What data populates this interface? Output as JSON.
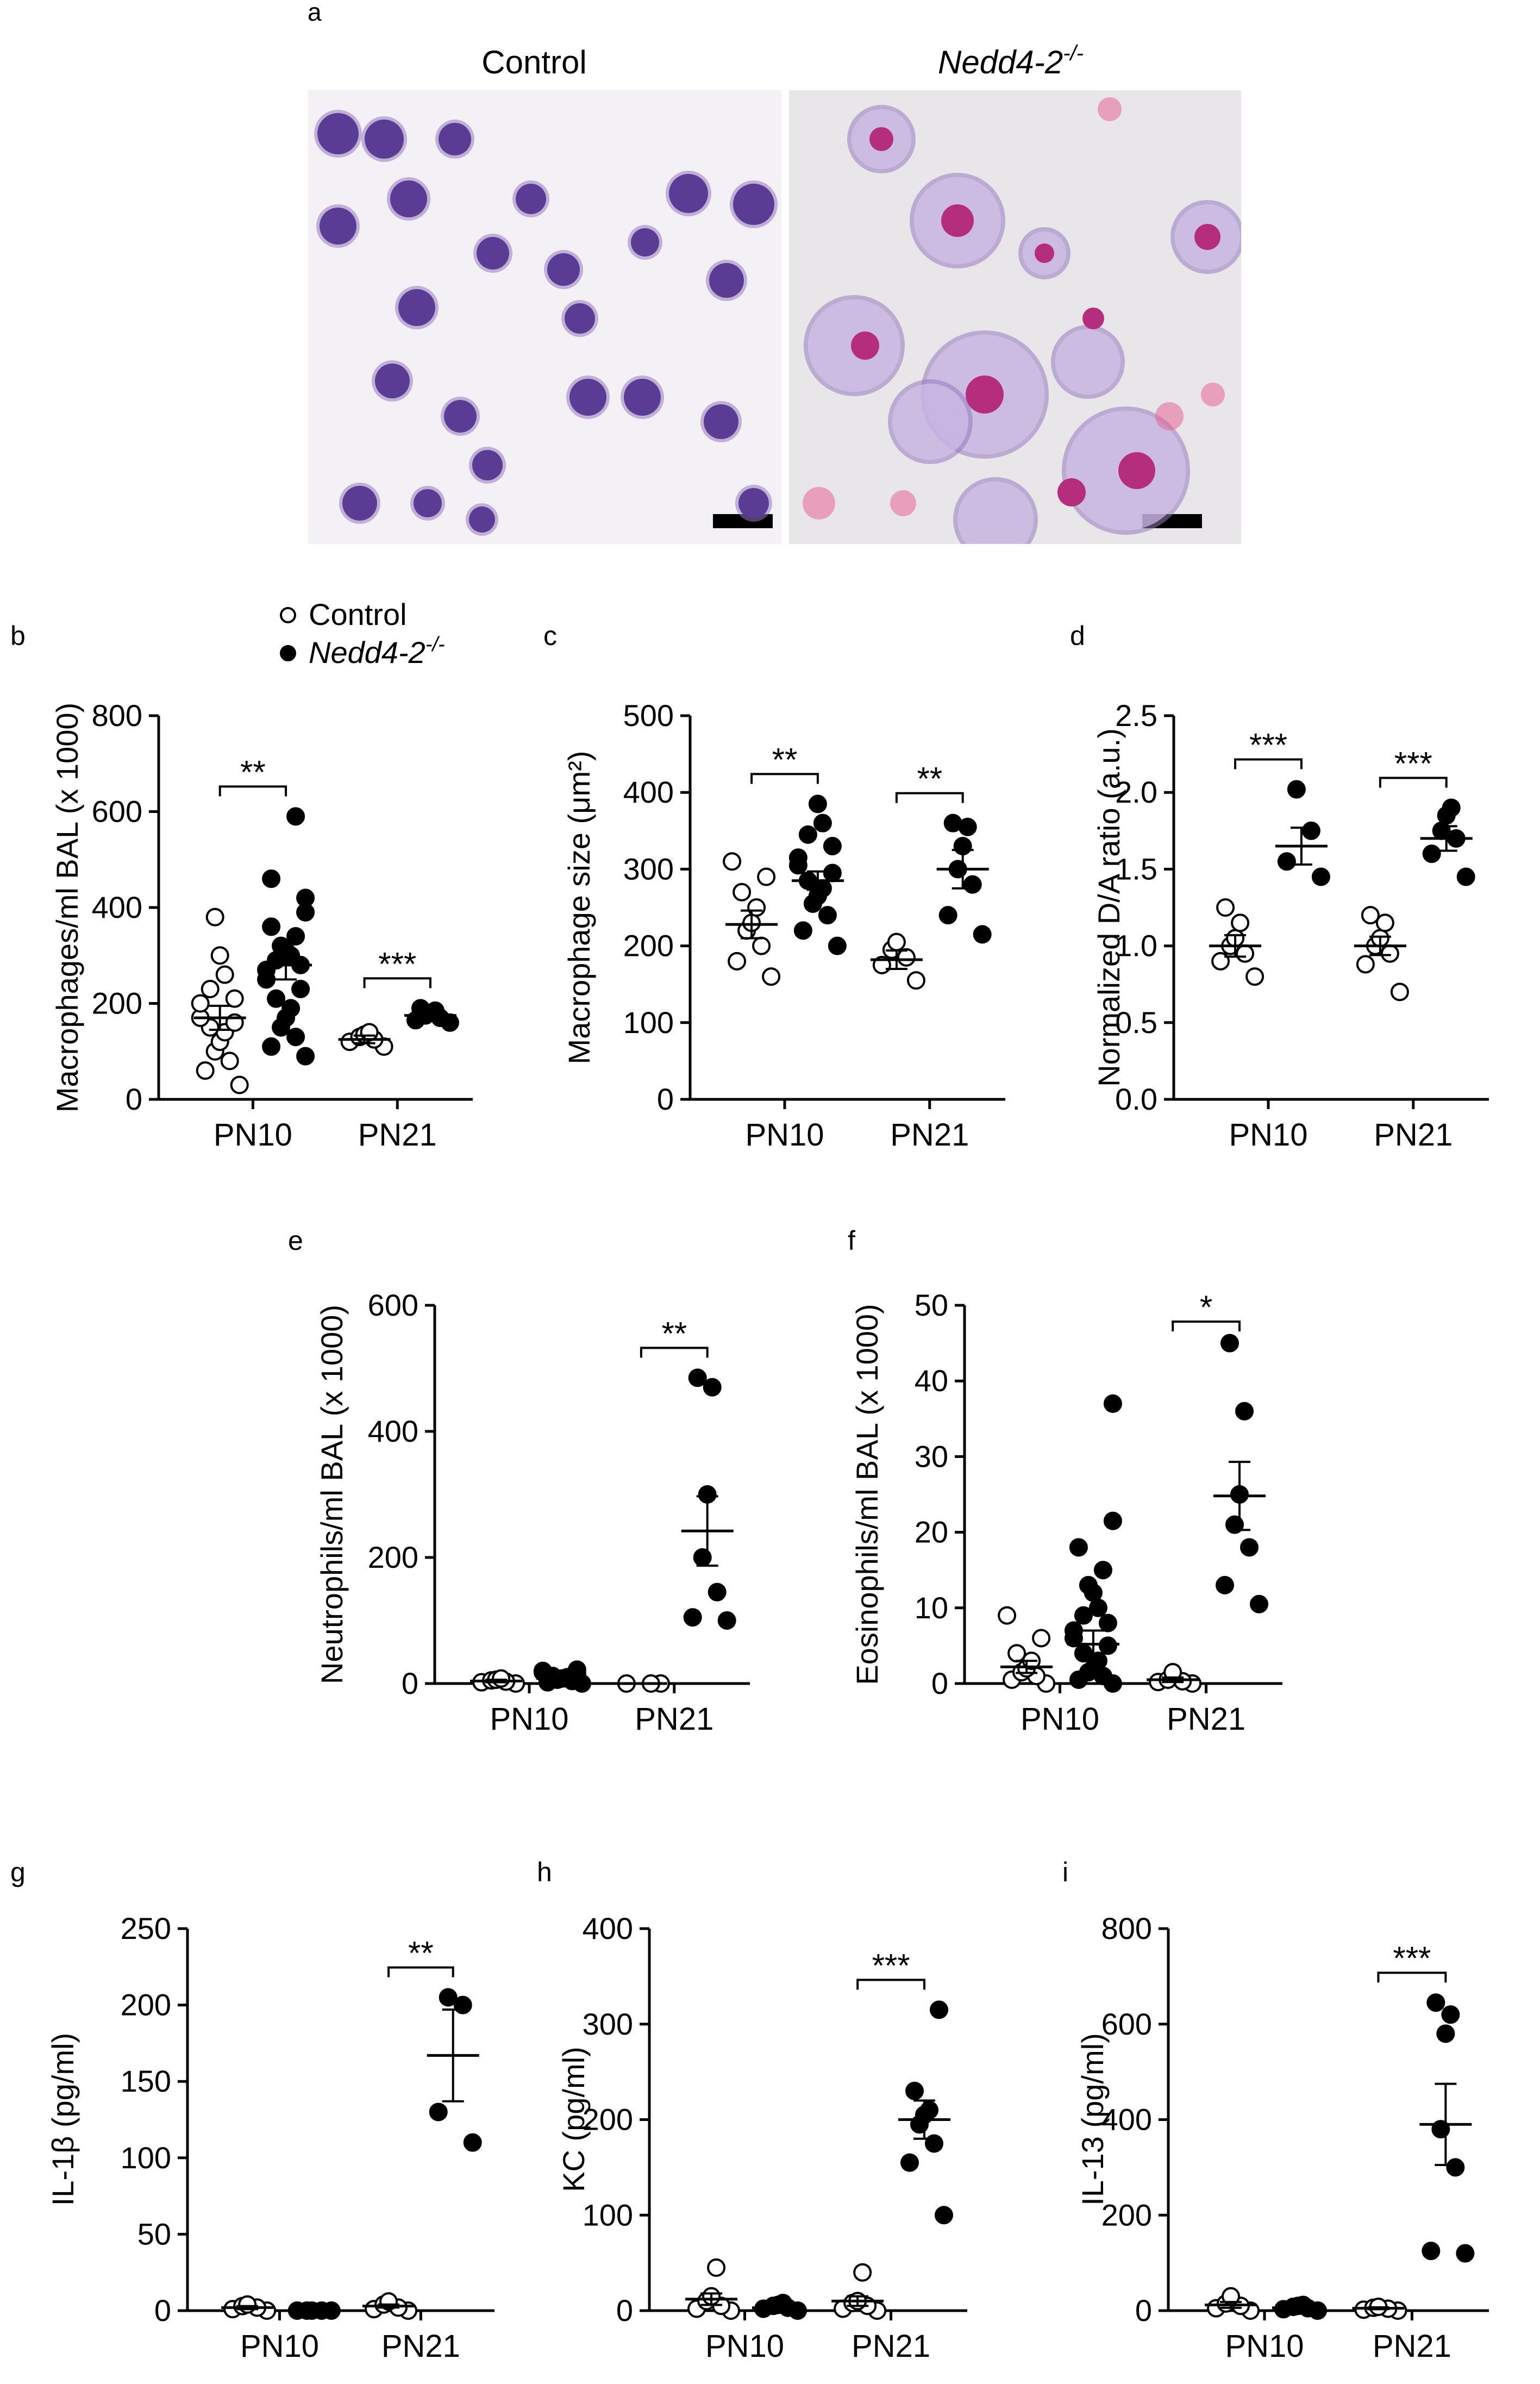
{
  "panel_letters": {
    "a": "a",
    "b": "b",
    "c": "c",
    "d": "d",
    "e": "e",
    "f": "f",
    "g": "g",
    "h": "h",
    "i": "i"
  },
  "micrographs": {
    "control_title": "Control",
    "ko_title_base": "Nedd4-2",
    "ko_title_sup": "-/-"
  },
  "legend": {
    "control": "Control",
    "ko_base": "Nedd4-2",
    "ko_sup": "-/-"
  },
  "colors": {
    "control_fill": "#ffffff",
    "ko_fill": "#000000",
    "axis": "#000000"
  },
  "chart_data": [
    {
      "id": "b",
      "type": "scatter",
      "ylabel": "Macrophages/ml BAL (x 1000)",
      "ylim": [
        0,
        800
      ],
      "yticks": [
        0,
        200,
        400,
        600,
        800
      ],
      "categories": [
        "PN10",
        "PN21"
      ],
      "series": [
        {
          "name": "Control",
          "groups": [
            [
              30,
              60,
              80,
              100,
              120,
              140,
              150,
              160,
              170,
              200,
              210,
              230,
              260,
              300,
              380
            ],
            [
              110,
              120,
              125,
              130,
              135,
              140
            ]
          ]
        },
        {
          "name": "Nedd4-2-/-",
          "groups": [
            [
              90,
              110,
              130,
              150,
              170,
              190,
              210,
              230,
              250,
              270,
              280,
              290,
              300,
              310,
              320,
              340,
              360,
              390,
              420,
              460,
              590
            ],
            [
              160,
              165,
              170,
              175,
              180,
              185,
              190
            ]
          ]
        }
      ],
      "means": [
        [
          170,
          280
        ],
        [
          125,
          175
        ]
      ],
      "sems": [
        [
          25,
          30
        ],
        [
          8,
          6
        ]
      ],
      "significance": [
        "**",
        "***"
      ]
    },
    {
      "id": "c",
      "type": "scatter",
      "ylabel": "Macrophage size (μm²)",
      "ylim": [
        0,
        500
      ],
      "yticks": [
        0,
        100,
        200,
        300,
        400,
        500
      ],
      "categories": [
        "PN10",
        "PN21"
      ],
      "series": [
        {
          "name": "Control",
          "groups": [
            [
              160,
              180,
              200,
              220,
              230,
              250,
              270,
              290,
              310
            ],
            [
              155,
              175,
              185,
              195,
              205
            ]
          ]
        },
        {
          "name": "Nedd4-2-/-",
          "groups": [
            [
              200,
              220,
              240,
              255,
              265,
              275,
              285,
              295,
              305,
              315,
              330,
              345,
              360,
              385
            ],
            [
              215,
              240,
              280,
              300,
              330,
              355,
              360
            ]
          ]
        }
      ],
      "means": [
        [
          228,
          285
        ],
        [
          182,
          300
        ]
      ],
      "sems": [
        [
          18,
          12
        ],
        [
          12,
          25
        ]
      ],
      "significance": [
        "**",
        "**"
      ]
    },
    {
      "id": "d",
      "type": "scatter",
      "ylabel": "Normalized D/A ratio (a.u.)",
      "ylim": [
        0,
        2.5
      ],
      "yticks": [
        "0.0",
        "0.5",
        "1.0",
        "1.5",
        "2.0",
        "2.5"
      ],
      "categories": [
        "PN10",
        "PN21"
      ],
      "series": [
        {
          "name": "Control",
          "groups": [
            [
              0.8,
              0.9,
              0.95,
              1.0,
              1.05,
              1.15,
              1.25
            ],
            [
              0.7,
              0.88,
              0.95,
              1.0,
              1.05,
              1.15,
              1.2
            ]
          ]
        },
        {
          "name": "Nedd4-2-/-",
          "groups": [
            [
              1.45,
              1.55,
              1.75,
              2.02
            ],
            [
              1.45,
              1.6,
              1.7,
              1.75,
              1.85,
              1.9
            ]
          ]
        }
      ],
      "means": [
        [
          1.0,
          1.65
        ],
        [
          1.0,
          1.7
        ]
      ],
      "sems": [
        [
          0.07,
          0.12
        ],
        [
          0.06,
          0.08
        ]
      ],
      "significance": [
        "***",
        "***"
      ]
    },
    {
      "id": "e",
      "type": "scatter",
      "ylabel": "Neutrophils/ml BAL (x 1000)",
      "ylim": [
        0,
        600
      ],
      "yticks": [
        0,
        200,
        400,
        600
      ],
      "categories": [
        "PN10",
        "PN21"
      ],
      "series": [
        {
          "name": "Control",
          "groups": [
            [
              0,
              2,
              3,
              5,
              6,
              8
            ],
            [
              0,
              0,
              0
            ]
          ]
        },
        {
          "name": "Nedd4-2-/-",
          "groups": [
            [
              0,
              2,
              4,
              6,
              8,
              10,
              12,
              15,
              18,
              20,
              22
            ],
            [
              100,
              105,
              145,
              200,
              300,
              470,
              485
            ]
          ]
        }
      ],
      "means": [
        [
          4,
          8
        ],
        [
          0,
          242
        ]
      ],
      "sems": [
        [
          2,
          2
        ],
        [
          0,
          55
        ]
      ],
      "significance": [
        "",
        "**"
      ]
    },
    {
      "id": "f",
      "type": "scatter",
      "ylabel": "Eosinophils/ml BAL (x 1000)",
      "ylim": [
        0,
        50
      ],
      "yticks": [
        0,
        10,
        20,
        30,
        40,
        50
      ],
      "categories": [
        "PN10",
        "PN21"
      ],
      "series": [
        {
          "name": "Control",
          "groups": [
            [
              0,
              0.5,
              1,
              1.5,
              2,
              3,
              4,
              6,
              9
            ],
            [
              0,
              0.2,
              0.3,
              0.5,
              1.5
            ]
          ]
        },
        {
          "name": "Nedd4-2-/-",
          "groups": [
            [
              0,
              0.5,
              1,
              1.5,
              2,
              3,
              4,
              5,
              6,
              7,
              8,
              9,
              10,
              12,
              13,
              15,
              18,
              21.5,
              37
            ],
            [
              10.5,
              13,
              18,
              21,
              25,
              36,
              45
            ]
          ]
        }
      ],
      "means": [
        [
          2.2,
          5.2
        ],
        [
          0.5,
          24.8
        ]
      ],
      "sems": [
        [
          0.8,
          1.8
        ],
        [
          0.3,
          4.5
        ]
      ],
      "significance": [
        "",
        "*"
      ]
    },
    {
      "id": "g",
      "type": "scatter",
      "ylabel": "IL-1β (pg/ml)",
      "ylim": [
        0,
        250
      ],
      "yticks": [
        0,
        50,
        100,
        150,
        200,
        250
      ],
      "categories": [
        "PN10",
        "PN21"
      ],
      "series": [
        {
          "name": "Control",
          "groups": [
            [
              0,
              1,
              2,
              3,
              4
            ],
            [
              0,
              1,
              2,
              4,
              6
            ]
          ]
        },
        {
          "name": "Nedd4-2-/-",
          "groups": [
            [
              0,
              0,
              0,
              0,
              0
            ],
            [
              110,
              130,
              200,
              205
            ]
          ]
        }
      ],
      "means": [
        [
          2,
          0
        ],
        [
          3,
          167
        ]
      ],
      "sems": [
        [
          1,
          0
        ],
        [
          1,
          30
        ]
      ],
      "significance": [
        "",
        "**"
      ]
    },
    {
      "id": "h",
      "type": "scatter",
      "ylabel": "KC (pg/ml)",
      "ylim": [
        0,
        400
      ],
      "yticks": [
        0,
        100,
        200,
        300,
        400
      ],
      "categories": [
        "PN10",
        "PN21"
      ],
      "series": [
        {
          "name": "Control",
          "groups": [
            [
              0,
              2,
              5,
              10,
              15,
              45
            ],
            [
              0,
              2,
              5,
              8,
              10,
              40
            ]
          ]
        },
        {
          "name": "Nedd4-2-/-",
          "groups": [
            [
              0,
              2,
              3,
              5,
              6,
              8
            ],
            [
              100,
              155,
              175,
              195,
              205,
              210,
              230,
              315
            ]
          ]
        }
      ],
      "means": [
        [
          12,
          3
        ],
        [
          10,
          200
        ]
      ],
      "sems": [
        [
          6,
          2
        ],
        [
          5,
          20
        ]
      ],
      "significance": [
        "",
        "***"
      ]
    },
    {
      "id": "i",
      "type": "scatter",
      "ylabel": "IL-13 (pg/ml)",
      "ylim": [
        0,
        800
      ],
      "yticks": [
        0,
        200,
        400,
        600,
        800
      ],
      "categories": [
        "PN10",
        "PN21"
      ],
      "series": [
        {
          "name": "Control",
          "groups": [
            [
              0,
              5,
              10,
              15,
              30
            ],
            [
              0,
              2,
              4,
              6,
              8
            ]
          ]
        },
        {
          "name": "Nedd4-2-/-",
          "groups": [
            [
              0,
              3,
              5,
              8,
              10,
              12
            ],
            [
              120,
              125,
              300,
              380,
              580,
              620,
              645
            ]
          ]
        }
      ],
      "means": [
        [
          12,
          6
        ],
        [
          5,
          390
        ]
      ],
      "sems": [
        [
          6,
          2
        ],
        [
          2,
          85
        ]
      ],
      "significance": [
        "",
        "***"
      ]
    }
  ]
}
